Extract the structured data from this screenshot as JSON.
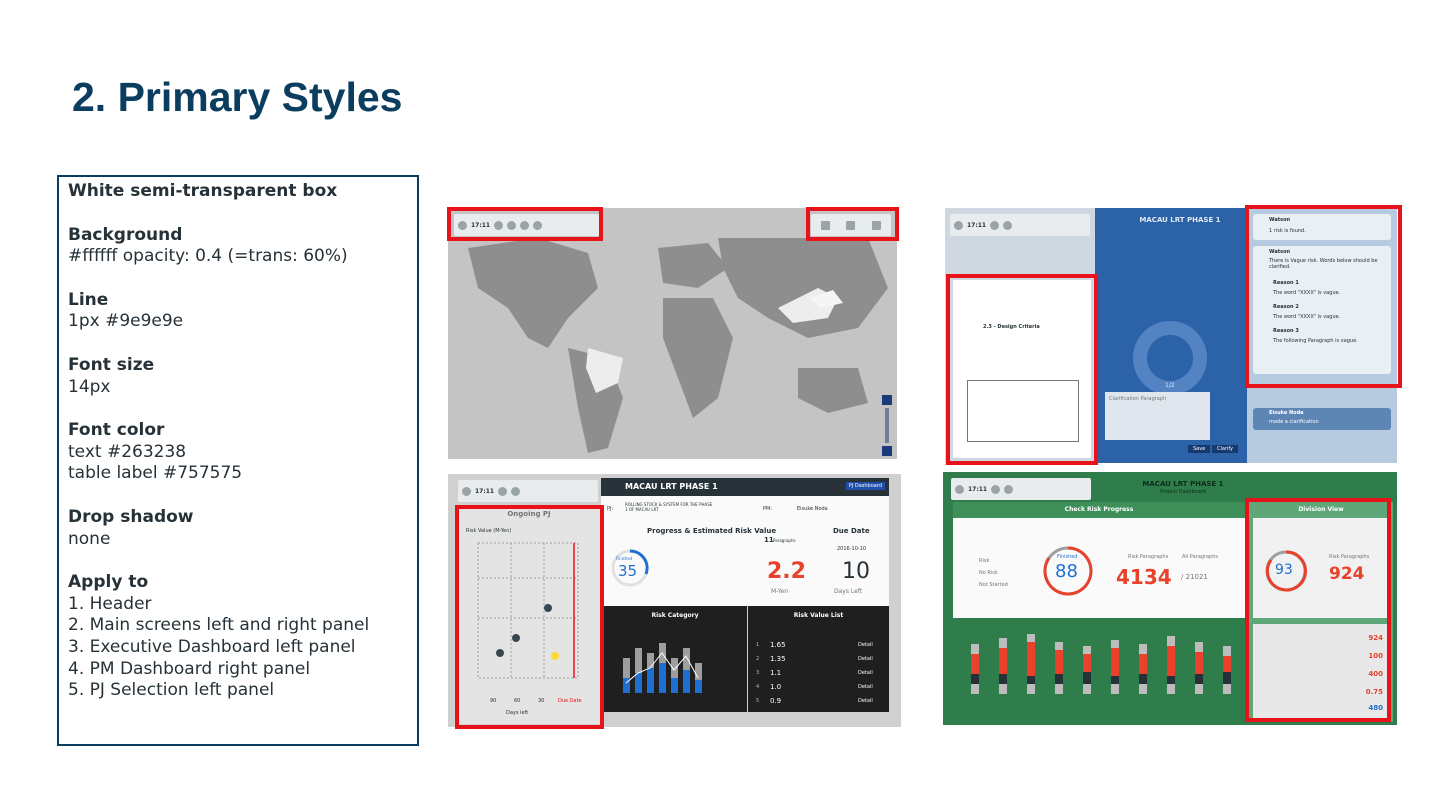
{
  "slide": {
    "title": "2. Primary Styles"
  },
  "spec": {
    "heading": "White semi-transparent box",
    "background_label": "Background",
    "background_value": "#ffffff opacity: 0.4 (=trans: 60%)",
    "line_label": "Line",
    "line_value": "1px #9e9e9e",
    "font_size_label": "Font size",
    "font_size_value": "14px",
    "font_color_label": "Font color",
    "font_color_text": "text #263238",
    "font_color_table": "table label #757575",
    "drop_shadow_label": "Drop shadow",
    "drop_shadow_value": "none",
    "apply_label": "Apply to",
    "apply_items": [
      "1.  Header",
      "2.  Main screens left and right panel",
      "3.  Executive Dashboard left panel",
      "4.  PM Dashboard right panel",
      "5.  PJ Selection left panel"
    ]
  },
  "shots": {
    "colors": {
      "highlight": "#e8121a",
      "accent_blue": "#1f6fd1",
      "accent_red": "#e8412c",
      "dark_blue": "#0b3d5e"
    },
    "header_time": "17:11",
    "map": {},
    "main": {
      "project": "MACAU LRT PHASE 1",
      "comment_author": "Watson",
      "comment_1": "1 risk is found.",
      "comment_2": "There is Vague risk. Words below should be clarified.",
      "reason_1": "Reason 1",
      "reason_1_text": "The word \"XXXX\" is vague.",
      "reason_2": "Reason 2",
      "reason_2_text": "The word \"XXXX\" is vague.",
      "reason_3": "Reason 3",
      "reason_3_text": "The following Paragraph is vague.",
      "bottom_author": "Eisuke Noda",
      "bottom_text": "made a clarification",
      "clarification_placeholder": "Clarification Paragraph",
      "save_label": "Save",
      "clarify_label": "Clarify",
      "page_indicator": "1/2",
      "section_title": "2.3 - Design Criteria"
    },
    "exec": {
      "left_title": "Ongoing PJ",
      "risk_axis": "Risk Value (M-Yen)",
      "days_axis": "Days left",
      "x_ticks": [
        "90",
        "60",
        "30"
      ],
      "due_label": "Due Date",
      "project": "MACAU LRT PHASE 1",
      "pj_dashboard": "PJ Dashboard",
      "pj_label": "PJ:",
      "pj_name": "ROLLING STOCK & SYSTEM FOR THE PHASE 1 OF MACAU LRT",
      "pm_label": "PM:",
      "pm_name": "Eisuke Noda",
      "progress_title": "Progress & Estimated Risk Value",
      "due_title": "Due Date",
      "finished_label": "Finished",
      "finished_value": "35",
      "paragraphs_count": "11",
      "paragraphs_label": "Paragraphs",
      "risk_value": "2.2",
      "risk_unit": "M-Yen",
      "due_date": "2016-10-10",
      "days_left_value": "10",
      "days_left_label": "Days Left",
      "risk_category_title": "Risk Category",
      "risk_value_list_title": "Risk Value List",
      "risk_list": [
        {
          "rank": "1",
          "value": "1.65",
          "detail": "Detail"
        },
        {
          "rank": "2",
          "value": "1.35",
          "detail": "Detail"
        },
        {
          "rank": "3",
          "value": "1.1",
          "detail": "Detail"
        },
        {
          "rank": "4",
          "value": "1.0",
          "detail": "Detail"
        },
        {
          "rank": "5",
          "value": "0.9",
          "detail": "Detail"
        }
      ]
    },
    "pm": {
      "project": "MACAU LRT PHASE 1",
      "sub": "Project Dashboard",
      "check_title": "Check Risk Progress",
      "legend": [
        "Risk",
        "No Risk",
        "Not Started"
      ],
      "finished_label": "Finished",
      "finished_value": "88",
      "risk_paragraphs_label": "Risk Paragraphs",
      "risk_paragraphs_value": "4134",
      "all_paragraphs_label": "All Paragraphs",
      "all_paragraphs_value": "/ 21021",
      "division_title": "Division View",
      "division_finished": "93",
      "division_risk_label": "Risk Paragraphs",
      "division_risk_value": "924",
      "division_values": [
        "924",
        "100",
        "400",
        "0.75",
        "480"
      ]
    }
  }
}
